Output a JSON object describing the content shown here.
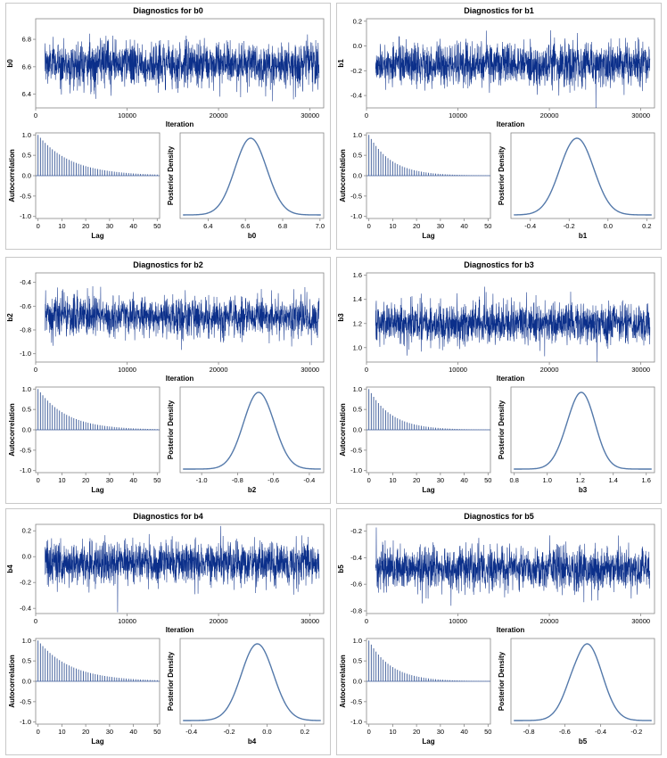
{
  "labels": {
    "iteration": "Iteration",
    "lag": "Lag",
    "autocorrelation": "Autocorrelation",
    "posterior_density": "Posterior Density"
  },
  "colors": {
    "trace": "#0b2f8a",
    "density": "#5479aa",
    "acf_bar": "#3b5a98",
    "frame": "#888888",
    "panel_border": "#c8c8c8",
    "text": "#000000"
  },
  "chart_data": [
    {
      "type": "diagnostics-panel",
      "title": "Diagnostics for b0",
      "param": "b0",
      "trace": {
        "xlabel": "Iteration",
        "ylabel": "b0",
        "xlim": [
          0,
          31500
        ],
        "ylim": [
          6.3,
          6.95
        ],
        "xticks": [
          0,
          10000,
          20000,
          30000
        ],
        "yticks": [
          6.4,
          6.6,
          6.8
        ],
        "ytick_labels": [
          "6.4",
          "6.6",
          "6.8"
        ],
        "mean": 6.62,
        "sd": 0.085,
        "start": 1000,
        "end": 31000
      },
      "acf": {
        "xlabel": "Lag",
        "ylabel": "Autocorrelation",
        "xlim": [
          -1,
          51
        ],
        "ylim": [
          -1.05,
          1.05
        ],
        "xticks": [
          0,
          10,
          20,
          30,
          40,
          50
        ],
        "yticks": [
          -1.0,
          -0.5,
          0.0,
          0.5,
          1.0
        ],
        "ytick_labels": [
          "-1.0",
          "-0.5",
          "0.0",
          "0.5",
          "1.0"
        ],
        "decay": 0.93
      },
      "density": {
        "xlabel": "b0",
        "ylabel": "Posterior Density",
        "xlim": [
          6.25,
          7.02
        ],
        "xticks": [
          6.4,
          6.6,
          6.8,
          7.0
        ],
        "xtick_labels": [
          "6.4",
          "6.6",
          "6.8",
          "7.0"
        ],
        "mean": 6.63,
        "sd": 0.085
      }
    },
    {
      "type": "diagnostics-panel",
      "title": "Diagnostics for b1",
      "param": "b1",
      "trace": {
        "xlabel": "Iteration",
        "ylabel": "b1",
        "xlim": [
          0,
          31500
        ],
        "ylim": [
          -0.5,
          0.22
        ],
        "xticks": [
          0,
          10000,
          20000,
          30000
        ],
        "yticks": [
          -0.4,
          -0.2,
          0.0,
          0.2
        ],
        "ytick_labels": [
          "-0.4",
          "-0.2",
          "0.0",
          "0.2"
        ],
        "mean": -0.15,
        "sd": 0.09,
        "start": 1000,
        "end": 31000
      },
      "acf": {
        "xlabel": "Lag",
        "ylabel": "Autocorrelation",
        "xlim": [
          -1,
          51
        ],
        "ylim": [
          -1.05,
          1.05
        ],
        "xticks": [
          0,
          10,
          20,
          30,
          40,
          50
        ],
        "yticks": [
          -1.0,
          -0.5,
          0.0,
          0.5,
          1.0
        ],
        "ytick_labels": [
          "-1.0",
          "-0.5",
          "0.0",
          "0.5",
          "1.0"
        ],
        "decay": 0.9
      },
      "density": {
        "xlabel": "b1",
        "ylabel": "Posterior Density",
        "xlim": [
          -0.5,
          0.24
        ],
        "xticks": [
          -0.4,
          -0.2,
          0.0,
          0.2
        ],
        "xtick_labels": [
          "-0.4",
          "-0.2",
          "0.0",
          "0.2"
        ],
        "mean": -0.16,
        "sd": 0.085
      }
    },
    {
      "type": "diagnostics-panel",
      "title": "Diagnostics for b2",
      "param": "b2",
      "trace": {
        "xlabel": "Iteration",
        "ylabel": "b2",
        "xlim": [
          0,
          31500
        ],
        "ylim": [
          -1.07,
          -0.32
        ],
        "xticks": [
          0,
          10000,
          20000,
          30000
        ],
        "yticks": [
          -1.0,
          -0.8,
          -0.6,
          -0.4
        ],
        "ytick_labels": [
          "-1.0",
          "-0.8",
          "-0.6",
          "-0.4"
        ],
        "mean": -0.69,
        "sd": 0.09,
        "start": 1000,
        "end": 31000
      },
      "acf": {
        "xlabel": "Lag",
        "ylabel": "Autocorrelation",
        "xlim": [
          -1,
          51
        ],
        "ylim": [
          -1.05,
          1.05
        ],
        "xticks": [
          0,
          10,
          20,
          30,
          40,
          50
        ],
        "yticks": [
          -1.0,
          -0.5,
          0.0,
          0.5,
          1.0
        ],
        "ytick_labels": [
          "-1.0",
          "-0.5",
          "0.0",
          "0.5",
          "1.0"
        ],
        "decay": 0.92
      },
      "density": {
        "xlabel": "b2",
        "ylabel": "Posterior Density",
        "xlim": [
          -1.12,
          -0.32
        ],
        "xticks": [
          -1.0,
          -0.8,
          -0.6,
          -0.4
        ],
        "xtick_labels": [
          "-1.0",
          "-0.8",
          "-0.6",
          "-0.4"
        ],
        "mean": -0.68,
        "sd": 0.085
      }
    },
    {
      "type": "diagnostics-panel",
      "title": "Diagnostics for b3",
      "param": "b3",
      "trace": {
        "xlabel": "Iteration",
        "ylabel": "b3",
        "xlim": [
          0,
          31500
        ],
        "ylim": [
          0.88,
          1.62
        ],
        "xticks": [
          0,
          10000,
          20000,
          30000
        ],
        "yticks": [
          1.0,
          1.2,
          1.4,
          1.6
        ],
        "ytick_labels": [
          "1.0",
          "1.2",
          "1.4",
          "1.6"
        ],
        "mean": 1.2,
        "sd": 0.09,
        "start": 1000,
        "end": 31000
      },
      "acf": {
        "xlabel": "Lag",
        "ylabel": "Autocorrelation",
        "xlim": [
          -1,
          51
        ],
        "ylim": [
          -1.05,
          1.05
        ],
        "xticks": [
          0,
          10,
          20,
          30,
          40,
          50
        ],
        "yticks": [
          -1.0,
          -0.5,
          0.0,
          0.5,
          1.0
        ],
        "ytick_labels": [
          "-1.0",
          "-0.5",
          "0.0",
          "0.5",
          "1.0"
        ],
        "decay": 0.9
      },
      "density": {
        "xlabel": "b3",
        "ylabel": "Posterior Density",
        "xlim": [
          0.78,
          1.65
        ],
        "xticks": [
          0.8,
          1.0,
          1.2,
          1.4,
          1.6
        ],
        "xtick_labels": [
          "0.8",
          "1.0",
          "1.2",
          "1.4",
          "1.6"
        ],
        "mean": 1.2,
        "sd": 0.085
      }
    },
    {
      "type": "diagnostics-panel",
      "title": "Diagnostics for b4",
      "param": "b4",
      "trace": {
        "xlabel": "Iteration",
        "ylabel": "b4",
        "xlim": [
          0,
          31500
        ],
        "ylim": [
          -0.44,
          0.25
        ],
        "xticks": [
          0,
          10000,
          20000,
          30000
        ],
        "yticks": [
          -0.4,
          -0.2,
          0.0,
          0.2
        ],
        "ytick_labels": [
          "-0.4",
          "-0.2",
          "0.0",
          "0.2"
        ],
        "mean": -0.05,
        "sd": 0.09,
        "start": 1000,
        "end": 31000
      },
      "acf": {
        "xlabel": "Lag",
        "ylabel": "Autocorrelation",
        "xlim": [
          -1,
          51
        ],
        "ylim": [
          -1.05,
          1.05
        ],
        "xticks": [
          0,
          10,
          20,
          30,
          40,
          50
        ],
        "yticks": [
          -1.0,
          -0.5,
          0.0,
          0.5,
          1.0
        ],
        "ytick_labels": [
          "-1.0",
          "-0.5",
          "0.0",
          "0.5",
          "1.0"
        ],
        "decay": 0.93
      },
      "density": {
        "xlabel": "b4",
        "ylabel": "Posterior Density",
        "xlim": [
          -0.46,
          0.3
        ],
        "xticks": [
          -0.4,
          -0.2,
          0.0,
          0.2
        ],
        "xtick_labels": [
          "-0.4",
          "-0.2",
          "0.0",
          "0.2"
        ],
        "mean": -0.05,
        "sd": 0.085
      }
    },
    {
      "type": "diagnostics-panel",
      "title": "Diagnostics for b5",
      "param": "b5",
      "trace": {
        "xlabel": "Iteration",
        "ylabel": "b5",
        "xlim": [
          0,
          31500
        ],
        "ylim": [
          -0.82,
          -0.15
        ],
        "xticks": [
          0,
          10000,
          20000,
          30000
        ],
        "yticks": [
          -0.8,
          -0.6,
          -0.4,
          -0.2
        ],
        "ytick_labels": [
          "-0.8",
          "-0.6",
          "-0.4",
          "-0.2"
        ],
        "mean": -0.48,
        "sd": 0.085,
        "start": 1000,
        "end": 31000
      },
      "acf": {
        "xlabel": "Lag",
        "ylabel": "Autocorrelation",
        "xlim": [
          -1,
          51
        ],
        "ylim": [
          -1.05,
          1.05
        ],
        "xticks": [
          0,
          10,
          20,
          30,
          40,
          50
        ],
        "yticks": [
          -1.0,
          -0.5,
          0.0,
          0.5,
          1.0
        ],
        "ytick_labels": [
          "-1.0",
          "-0.5",
          "0.0",
          "0.5",
          "1.0"
        ],
        "decay": 0.9
      },
      "density": {
        "xlabel": "b5",
        "ylabel": "Posterior Density",
        "xlim": [
          -0.9,
          -0.1
        ],
        "xticks": [
          -0.8,
          -0.6,
          -0.4,
          -0.2
        ],
        "xtick_labels": [
          "-0.8",
          "-0.6",
          "-0.4",
          "-0.2"
        ],
        "mean": -0.48,
        "sd": 0.085
      }
    }
  ]
}
